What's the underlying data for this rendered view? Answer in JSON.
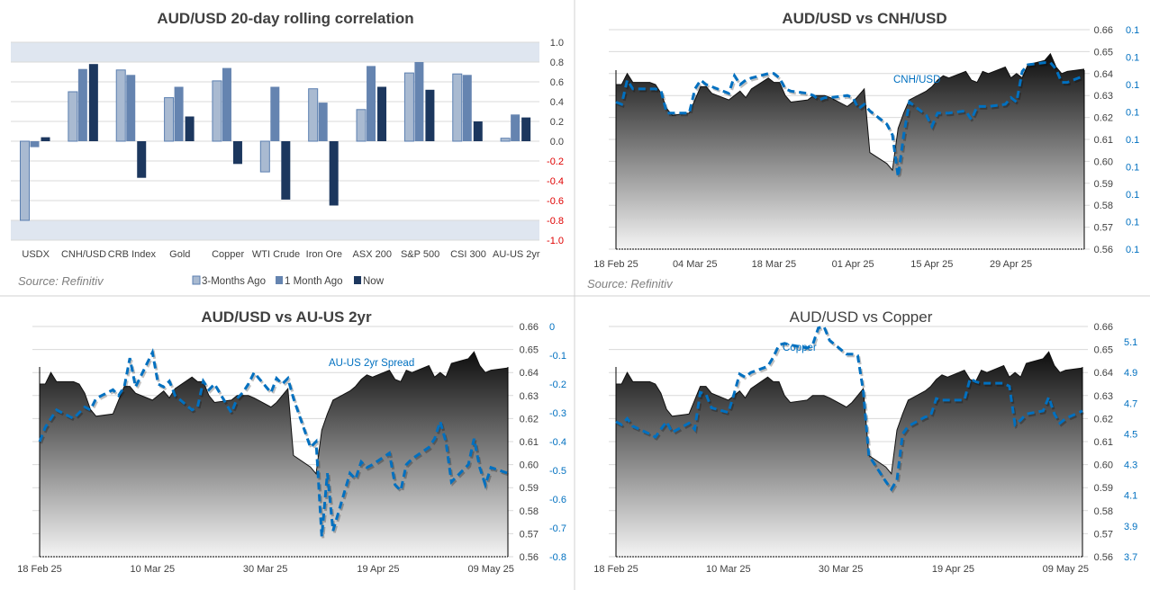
{
  "source_label": "Source: Refinitiv",
  "colors": {
    "three_months": "#a9bad1",
    "one_month": "#6584b0",
    "now": "#1c375e",
    "band": "#dfe6f0",
    "line": "#0070c0",
    "negative_tick": "#e00000"
  },
  "chart_data": [
    {
      "type": "bar",
      "title": "AUD/USD 20-day rolling correlation",
      "categories": [
        "USDX",
        "CNH/USD",
        "CRB Index",
        "Gold",
        "Copper",
        "WTI Crude",
        "Iron Ore",
        "ASX 200",
        "S&P 500",
        "CSI 300",
        "AU-US 2yr"
      ],
      "series": [
        {
          "name": "3-Months Ago",
          "values": [
            -0.8,
            0.5,
            0.72,
            0.44,
            0.61,
            -0.31,
            0.53,
            0.32,
            0.69,
            0.68,
            0.03
          ]
        },
        {
          "name": "1 Month Ago",
          "values": [
            -0.06,
            0.73,
            0.67,
            0.55,
            0.74,
            0.55,
            0.39,
            0.76,
            0.8,
            0.67,
            0.27
          ]
        },
        {
          "name": "Now",
          "values": [
            0.04,
            0.78,
            -0.37,
            0.25,
            -0.23,
            -0.59,
            -0.65,
            0.55,
            0.52,
            0.2,
            0.24
          ]
        }
      ],
      "ylim": [
        -1.0,
        1.0
      ],
      "y_ticks": [
        "1.0",
        "0.8",
        "0.6",
        "0.4",
        "0.2",
        "0.0",
        "-0.2",
        "-0.4",
        "-0.6",
        "-0.8",
        "-1.0"
      ],
      "shaded_bands": [
        [
          0.8,
          1.0
        ],
        [
          -1.0,
          -0.8
        ]
      ],
      "legend": "bottom",
      "grid": true
    },
    {
      "type": "area+line",
      "title": "AUD/USD vs CNH/USD",
      "series_label": "CNH/USD",
      "xlim": [
        "2025-02-18",
        "2025-05-12"
      ],
      "x_ticks": [
        {
          "label": "18 Feb 25",
          "date": "2025-02-18"
        },
        {
          "label": "04 Mar 25",
          "date": "2025-03-04"
        },
        {
          "label": "18 Mar 25",
          "date": "2025-03-18"
        },
        {
          "label": "01 Apr 25",
          "date": "2025-04-01"
        },
        {
          "label": "15 Apr 25",
          "date": "2025-04-15"
        },
        {
          "label": "29 Apr 25",
          "date": "2025-04-29"
        }
      ],
      "ylim_left": [
        0.56,
        0.66
      ],
      "left_ticks": [
        "0.66",
        "0.65",
        "0.64",
        "0.63",
        "0.62",
        "0.61",
        "0.60",
        "0.59",
        "0.58",
        "0.57",
        "0.56"
      ],
      "ylim_right": [
        0.13,
        0.14
      ],
      "right_ticks": [
        "0.1",
        "0.1",
        "0.1",
        "0.1",
        "0.1",
        "0.1",
        "0.1",
        "0.1",
        "0.1"
      ],
      "x": [
        "2025-02-18",
        "2025-02-19",
        "2025-02-20",
        "2025-02-21",
        "2025-02-24",
        "2025-02-25",
        "2025-02-26",
        "2025-02-27",
        "2025-02-28",
        "2025-03-03",
        "2025-03-04",
        "2025-03-05",
        "2025-03-06",
        "2025-03-07",
        "2025-03-10",
        "2025-03-11",
        "2025-03-12",
        "2025-03-13",
        "2025-03-14",
        "2025-03-17",
        "2025-03-18",
        "2025-03-19",
        "2025-03-20",
        "2025-03-21",
        "2025-03-24",
        "2025-03-25",
        "2025-03-26",
        "2025-03-27",
        "2025-03-28",
        "2025-03-31",
        "2025-04-01",
        "2025-04-02",
        "2025-04-03",
        "2025-04-04",
        "2025-04-07",
        "2025-04-08",
        "2025-04-09",
        "2025-04-10",
        "2025-04-11",
        "2025-04-14",
        "2025-04-15",
        "2025-04-16",
        "2025-04-17",
        "2025-04-18",
        "2025-04-21",
        "2025-04-22",
        "2025-04-23",
        "2025-04-24",
        "2025-04-25",
        "2025-04-28",
        "2025-04-29",
        "2025-04-30",
        "2025-05-01",
        "2025-05-02",
        "2025-05-05",
        "2025-05-06",
        "2025-05-07",
        "2025-05-08",
        "2025-05-09",
        "2025-05-12"
      ],
      "aud_usd": [
        0.635,
        0.635,
        0.64,
        0.636,
        0.636,
        0.635,
        0.631,
        0.624,
        0.621,
        0.622,
        0.628,
        0.634,
        0.634,
        0.631,
        0.628,
        0.63,
        0.632,
        0.629,
        0.633,
        0.638,
        0.636,
        0.636,
        0.63,
        0.627,
        0.628,
        0.63,
        0.63,
        0.63,
        0.629,
        0.625,
        0.627,
        0.63,
        0.633,
        0.604,
        0.599,
        0.596,
        0.615,
        0.622,
        0.628,
        0.632,
        0.634,
        0.637,
        0.639,
        0.638,
        0.641,
        0.637,
        0.636,
        0.641,
        0.64,
        0.643,
        0.638,
        0.64,
        0.638,
        0.644,
        0.646,
        0.649,
        0.643,
        0.64,
        0.641,
        0.642
      ],
      "secondary": [
        0.1367,
        0.1366,
        0.1377,
        0.1373,
        0.1373,
        0.1373,
        0.1372,
        0.1362,
        0.1362,
        0.1362,
        0.1373,
        0.1377,
        0.1375,
        0.1374,
        0.1371,
        0.1379,
        0.1375,
        0.1377,
        0.1378,
        0.138,
        0.138,
        0.1378,
        0.1373,
        0.1372,
        0.1371,
        0.137,
        0.1368,
        0.1369,
        0.1369,
        0.137,
        0.1369,
        0.1364,
        0.1366,
        0.1363,
        0.1357,
        0.1352,
        0.1333,
        0.1352,
        0.1367,
        0.1361,
        0.1356,
        0.1362,
        0.1362,
        0.1362,
        0.1363,
        0.1359,
        0.1365,
        0.1365,
        0.1365,
        0.1366,
        0.1369,
        0.1367,
        0.1381,
        0.1384,
        0.1385,
        0.1385,
        0.1382,
        0.1376,
        0.1376,
        0.1379
      ]
    },
    {
      "type": "area+line",
      "title": "AUD/USD vs AU-US 2yr",
      "series_label": "AU-US 2yr Spread",
      "xlim": [
        "2025-02-18",
        "2025-05-12"
      ],
      "x_ticks": [
        {
          "label": "18 Feb 25",
          "date": "2025-02-18"
        },
        {
          "label": "10 Mar 25",
          "date": "2025-03-10"
        },
        {
          "label": "30 Mar 25",
          "date": "2025-03-30"
        },
        {
          "label": "19 Apr 25",
          "date": "2025-04-19"
        },
        {
          "label": "09 May 25",
          "date": "2025-05-09"
        }
      ],
      "ylim_left": [
        0.56,
        0.66
      ],
      "left_ticks": [
        "0.66",
        "0.65",
        "0.64",
        "0.63",
        "0.62",
        "0.61",
        "0.60",
        "0.59",
        "0.58",
        "0.57",
        "0.56"
      ],
      "ylim_right": [
        -0.8,
        0
      ],
      "right_ticks": [
        "0",
        "-0.1",
        "-0.2",
        "-0.3",
        "-0.4",
        "-0.5",
        "-0.6",
        "-0.7",
        "-0.8"
      ],
      "x": [
        "2025-02-18",
        "2025-02-19",
        "2025-02-20",
        "2025-02-21",
        "2025-02-24",
        "2025-02-25",
        "2025-02-26",
        "2025-02-27",
        "2025-02-28",
        "2025-03-03",
        "2025-03-04",
        "2025-03-05",
        "2025-03-06",
        "2025-03-07",
        "2025-03-10",
        "2025-03-11",
        "2025-03-12",
        "2025-03-13",
        "2025-03-14",
        "2025-03-17",
        "2025-03-18",
        "2025-03-19",
        "2025-03-20",
        "2025-03-21",
        "2025-03-24",
        "2025-03-25",
        "2025-03-26",
        "2025-03-27",
        "2025-03-28",
        "2025-03-31",
        "2025-04-01",
        "2025-04-02",
        "2025-04-03",
        "2025-04-04",
        "2025-04-07",
        "2025-04-08",
        "2025-04-09",
        "2025-04-10",
        "2025-04-11",
        "2025-04-14",
        "2025-04-15",
        "2025-04-16",
        "2025-04-17",
        "2025-04-18",
        "2025-04-21",
        "2025-04-22",
        "2025-04-23",
        "2025-04-24",
        "2025-04-25",
        "2025-04-28",
        "2025-04-29",
        "2025-04-30",
        "2025-05-01",
        "2025-05-02",
        "2025-05-05",
        "2025-05-06",
        "2025-05-07",
        "2025-05-08",
        "2025-05-09",
        "2025-05-12"
      ],
      "aud_usd": [
        0.635,
        0.635,
        0.64,
        0.636,
        0.636,
        0.635,
        0.631,
        0.624,
        0.621,
        0.622,
        0.628,
        0.634,
        0.634,
        0.631,
        0.628,
        0.63,
        0.632,
        0.629,
        0.633,
        0.638,
        0.636,
        0.636,
        0.63,
        0.627,
        0.628,
        0.63,
        0.63,
        0.63,
        0.629,
        0.625,
        0.627,
        0.63,
        0.633,
        0.604,
        0.599,
        0.596,
        0.615,
        0.622,
        0.628,
        0.632,
        0.634,
        0.637,
        0.639,
        0.638,
        0.641,
        0.637,
        0.636,
        0.641,
        0.64,
        0.643,
        0.638,
        0.64,
        0.638,
        0.644,
        0.646,
        0.649,
        0.643,
        0.64,
        0.641,
        0.642
      ],
      "secondary": [
        -0.4,
        -0.35,
        -0.32,
        -0.29,
        -0.32,
        -0.3,
        -0.28,
        -0.29,
        -0.25,
        -0.22,
        -0.24,
        -0.21,
        -0.11,
        -0.21,
        -0.09,
        -0.2,
        -0.21,
        -0.19,
        -0.24,
        -0.29,
        -0.28,
        -0.19,
        -0.22,
        -0.2,
        -0.3,
        -0.25,
        -0.23,
        -0.2,
        -0.16,
        -0.23,
        -0.18,
        -0.2,
        -0.18,
        -0.25,
        -0.42,
        -0.4,
        -0.73,
        -0.51,
        -0.71,
        -0.51,
        -0.53,
        -0.47,
        -0.49,
        -0.48,
        -0.44,
        -0.55,
        -0.57,
        -0.48,
        -0.46,
        -0.42,
        -0.39,
        -0.33,
        -0.4,
        -0.54,
        -0.48,
        -0.39,
        -0.49,
        -0.55,
        -0.49,
        -0.51
      ]
    },
    {
      "type": "area+line",
      "title": "AUD/USD vs Copper",
      "series_label": "Copper",
      "xlim": [
        "2025-02-18",
        "2025-05-12"
      ],
      "x_ticks": [
        {
          "label": "18 Feb 25",
          "date": "2025-02-18"
        },
        {
          "label": "10 Mar 25",
          "date": "2025-03-10"
        },
        {
          "label": "30 Mar 25",
          "date": "2025-03-30"
        },
        {
          "label": "19 Apr 25",
          "date": "2025-04-19"
        },
        {
          "label": "09 May 25",
          "date": "2025-05-09"
        }
      ],
      "ylim_left": [
        0.56,
        0.66
      ],
      "left_ticks": [
        "0.66",
        "0.65",
        "0.64",
        "0.63",
        "0.62",
        "0.61",
        "0.60",
        "0.59",
        "0.58",
        "0.57",
        "0.56"
      ],
      "ylim_right": [
        3.7,
        5.2
      ],
      "right_ticks": [
        "5.1",
        "4.9",
        "4.7",
        "4.5",
        "4.3",
        "4.1",
        "3.9",
        "3.7"
      ],
      "x": [
        "2025-02-18",
        "2025-02-19",
        "2025-02-20",
        "2025-02-21",
        "2025-02-24",
        "2025-02-25",
        "2025-02-26",
        "2025-02-27",
        "2025-02-28",
        "2025-03-03",
        "2025-03-04",
        "2025-03-05",
        "2025-03-06",
        "2025-03-07",
        "2025-03-10",
        "2025-03-11",
        "2025-03-12",
        "2025-03-13",
        "2025-03-14",
        "2025-03-17",
        "2025-03-18",
        "2025-03-19",
        "2025-03-20",
        "2025-03-21",
        "2025-03-24",
        "2025-03-25",
        "2025-03-26",
        "2025-03-27",
        "2025-03-28",
        "2025-03-31",
        "2025-04-01",
        "2025-04-02",
        "2025-04-03",
        "2025-04-04",
        "2025-04-07",
        "2025-04-08",
        "2025-04-09",
        "2025-04-10",
        "2025-04-11",
        "2025-04-14",
        "2025-04-15",
        "2025-04-16",
        "2025-04-17",
        "2025-04-18",
        "2025-04-21",
        "2025-04-22",
        "2025-04-23",
        "2025-04-24",
        "2025-04-25",
        "2025-04-28",
        "2025-04-29",
        "2025-04-30",
        "2025-05-01",
        "2025-05-02",
        "2025-05-05",
        "2025-05-06",
        "2025-05-07",
        "2025-05-08",
        "2025-05-09",
        "2025-05-12"
      ],
      "aud_usd": [
        0.635,
        0.635,
        0.64,
        0.636,
        0.636,
        0.635,
        0.631,
        0.624,
        0.621,
        0.622,
        0.628,
        0.634,
        0.634,
        0.631,
        0.628,
        0.63,
        0.632,
        0.629,
        0.633,
        0.638,
        0.636,
        0.636,
        0.63,
        0.627,
        0.628,
        0.63,
        0.63,
        0.63,
        0.629,
        0.625,
        0.627,
        0.63,
        0.633,
        0.604,
        0.599,
        0.596,
        0.615,
        0.622,
        0.628,
        0.632,
        0.634,
        0.637,
        0.639,
        0.638,
        0.641,
        0.637,
        0.636,
        0.641,
        0.64,
        0.643,
        0.638,
        0.64,
        0.638,
        0.644,
        0.646,
        0.649,
        0.643,
        0.64,
        0.641,
        0.642
      ],
      "secondary": [
        4.58,
        4.56,
        4.6,
        4.55,
        4.5,
        4.48,
        4.53,
        4.58,
        4.51,
        4.57,
        4.53,
        4.77,
        4.76,
        4.67,
        4.64,
        4.76,
        4.89,
        4.87,
        4.9,
        4.94,
        5.0,
        5.08,
        5.09,
        5.08,
        5.06,
        5.08,
        5.19,
        5.2,
        5.11,
        5.02,
        5.02,
        5.01,
        4.78,
        4.36,
        4.19,
        4.14,
        4.2,
        4.5,
        4.55,
        4.61,
        4.62,
        4.73,
        4.72,
        4.72,
        4.72,
        4.86,
        4.84,
        4.83,
        4.83,
        4.83,
        4.81,
        4.56,
        4.59,
        4.63,
        4.65,
        4.74,
        4.63,
        4.57,
        4.6,
        4.65
      ]
    }
  ]
}
